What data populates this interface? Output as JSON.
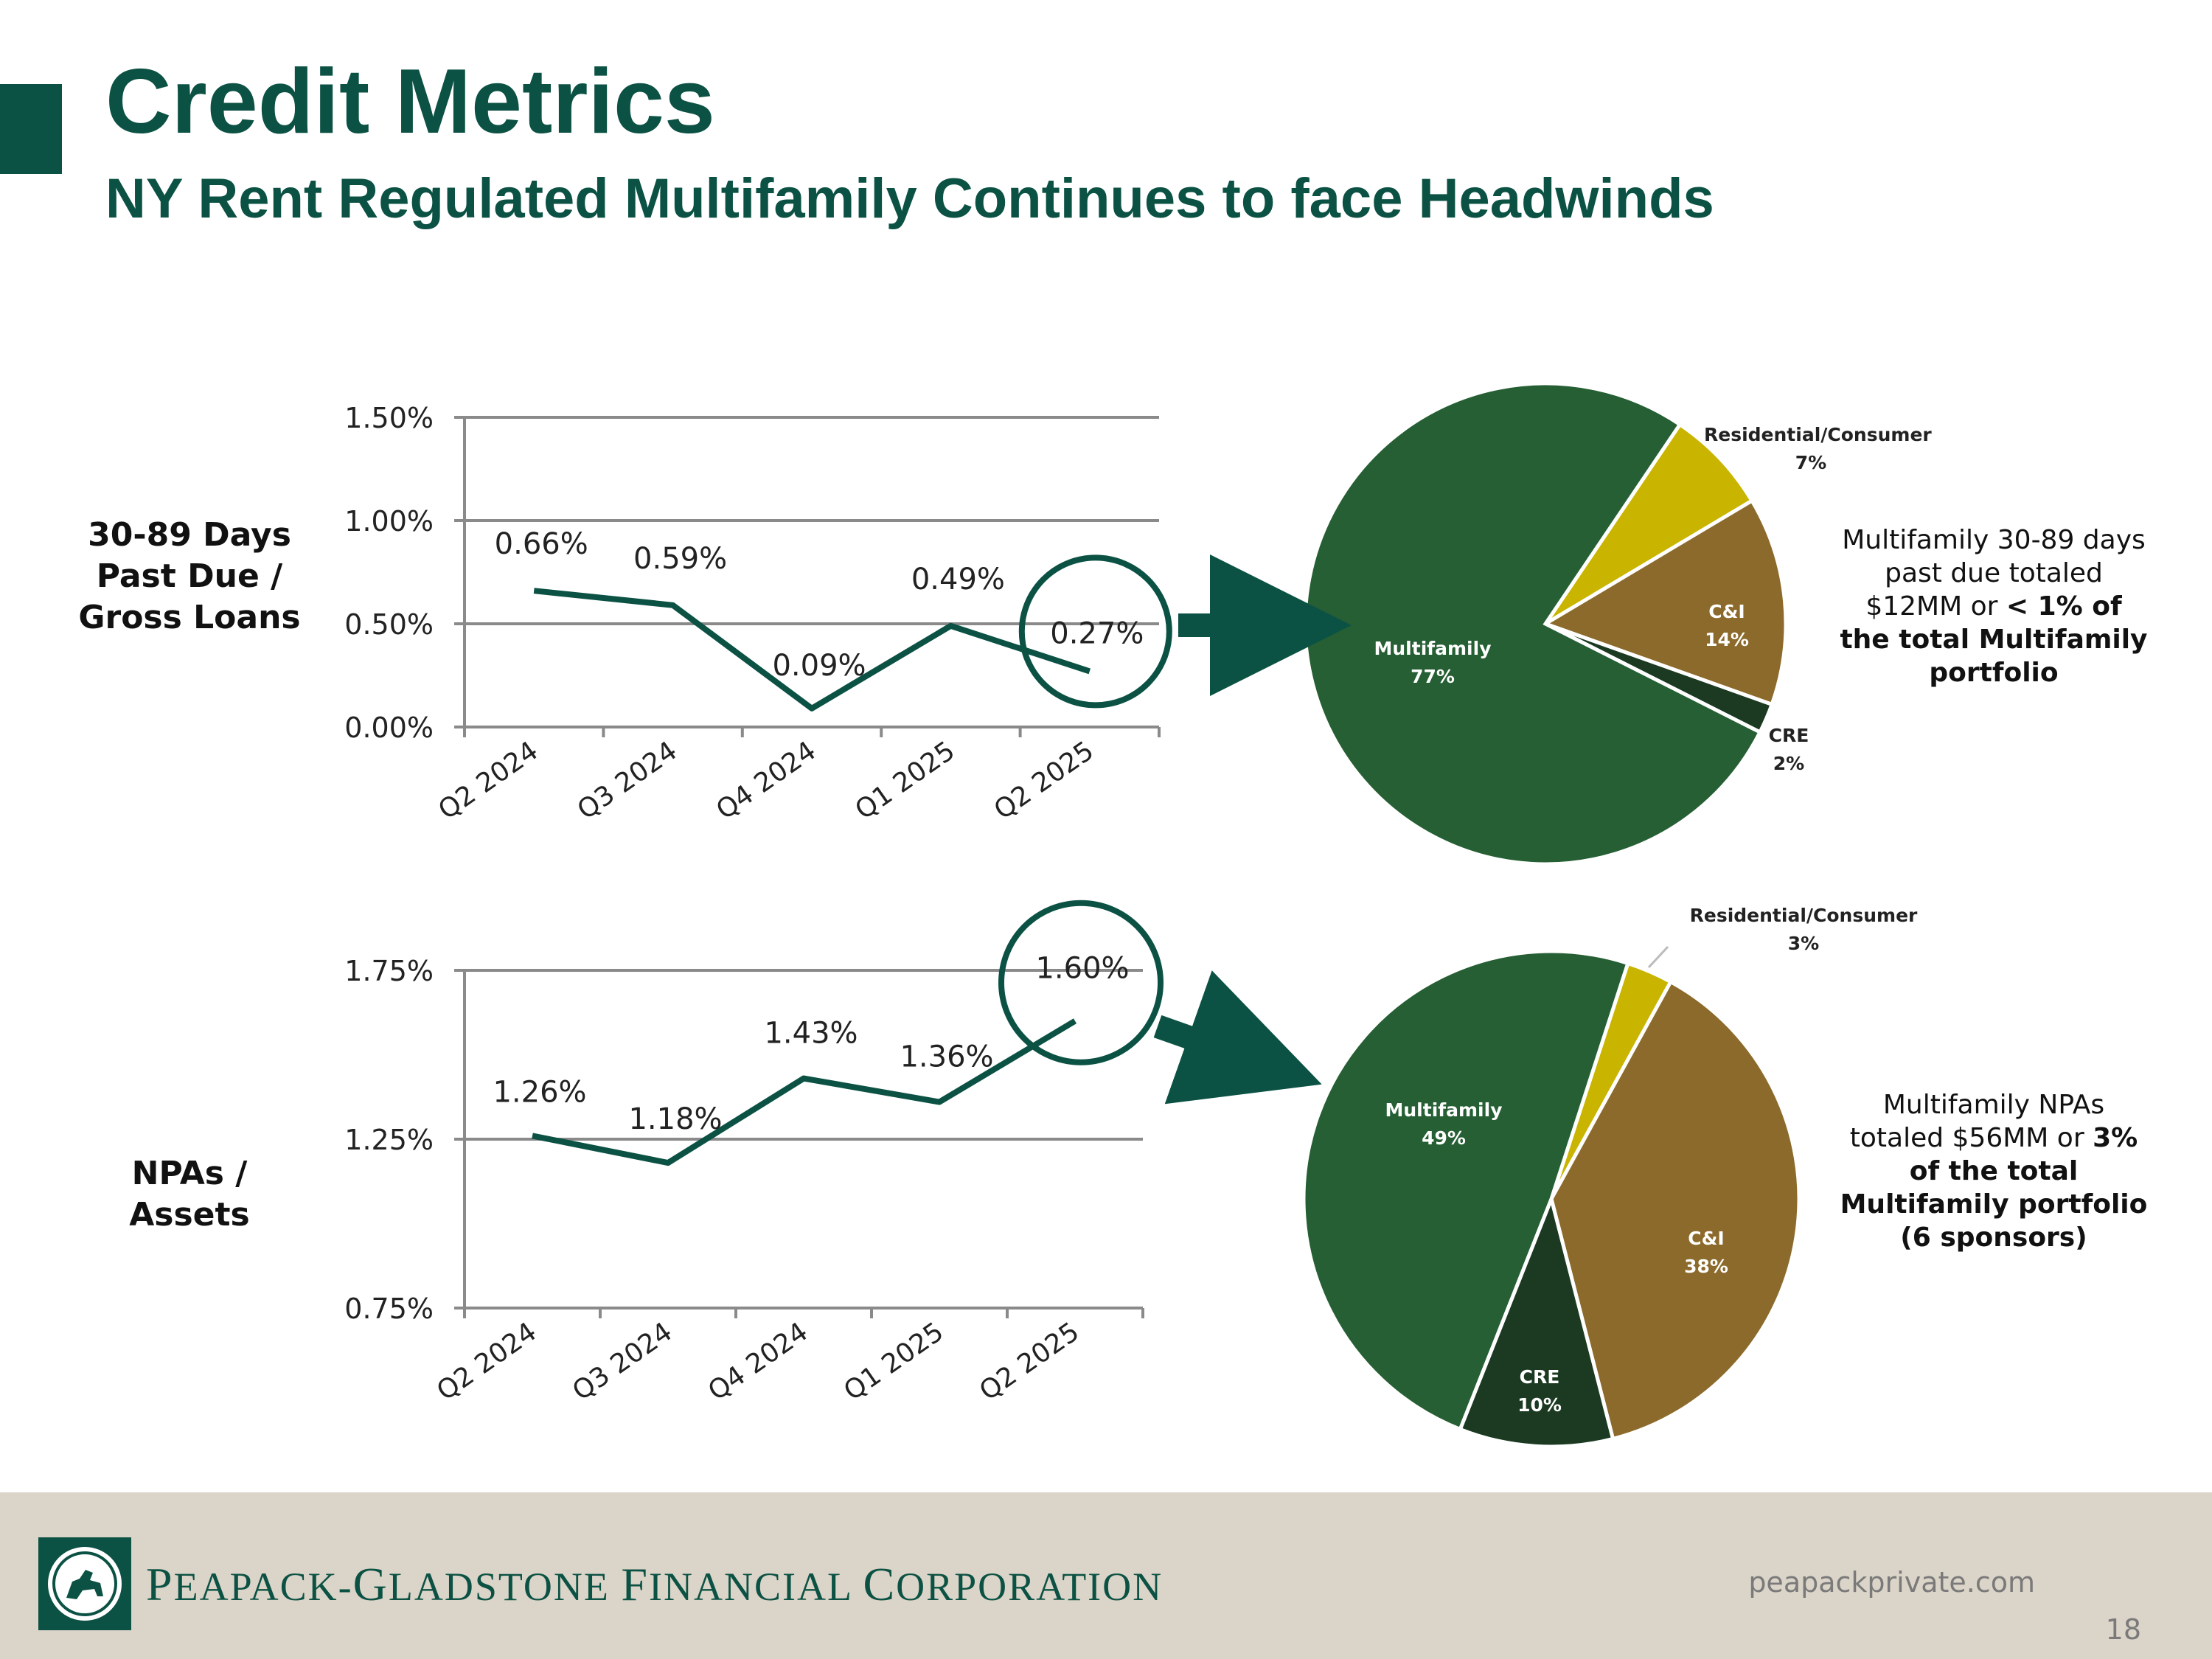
{
  "header": {
    "title": "Credit Metrics",
    "subtitle": "NY Rent Regulated Multifamily Continues to face Headwinds"
  },
  "rows": [
    {
      "label_lines": [
        "30-89 Days",
        "Past Due /",
        "Gross Loans"
      ],
      "callout": {
        "plain": "Multifamily 30-89 days past due totaled $12MM or",
        "bold": "< 1% of the total Multifamily portfolio"
      }
    },
    {
      "label_lines": [
        "NPAs /",
        "Assets"
      ],
      "callout": {
        "plain1": "Multifamily NPAs totaled $56MM or",
        "bold1": "3%",
        "bold2": "of the total Multifamily portfolio (6 sponsors)"
      }
    }
  ],
  "chart_data": [
    {
      "type": "line",
      "categories": [
        "Q2 2024",
        "Q3 2024",
        "Q4 2024",
        "Q1 2025",
        "Q2 2025"
      ],
      "values": [
        0.66,
        0.59,
        0.09,
        0.49,
        0.27
      ],
      "data_labels": [
        "0.66%",
        "0.59%",
        "0.09%",
        "0.49%",
        "0.27%"
      ],
      "yticks": [
        "0.00%",
        "0.50%",
        "1.00%",
        "1.50%"
      ],
      "ylim": [
        0,
        1.5
      ],
      "grid": true,
      "highlight": "Q2 2025",
      "color": "#0c5244"
    },
    {
      "type": "line",
      "categories": [
        "Q2 2024",
        "Q3 2024",
        "Q4 2024",
        "Q1 2025",
        "Q2 2025"
      ],
      "values": [
        1.26,
        1.18,
        1.43,
        1.36,
        1.6
      ],
      "data_labels": [
        "1.26%",
        "1.18%",
        "1.43%",
        "1.36%",
        "1.60%"
      ],
      "yticks": [
        "0.75%",
        "1.25%",
        "1.75%"
      ],
      "ylim": [
        0.75,
        1.75
      ],
      "grid": true,
      "highlight": "Q2 2025",
      "color": "#0c5244"
    },
    {
      "type": "pie",
      "slices": [
        {
          "label": "Residential/Consumer",
          "pct_label": "7%",
          "value": 7,
          "color": "#c9b400"
        },
        {
          "label": "C&I",
          "pct_label": "14%",
          "value": 14,
          "color": "#8b6a2b"
        },
        {
          "label": "CRE",
          "pct_label": "2%",
          "value": 2,
          "color": "#1c3a22"
        },
        {
          "label": "Multifamily",
          "pct_label": "77%",
          "value": 77,
          "color": "#255f33"
        }
      ]
    },
    {
      "type": "pie",
      "slices": [
        {
          "label": "Residential/Consumer",
          "pct_label": "3%",
          "value": 3,
          "color": "#c9b400"
        },
        {
          "label": "C&I",
          "pct_label": "38%",
          "value": 38,
          "color": "#8b6a2b"
        },
        {
          "label": "CRE",
          "pct_label": "10%",
          "value": 10,
          "color": "#1c3a22"
        },
        {
          "label": "Multifamily",
          "pct_label": "49%",
          "value": 49,
          "color": "#255f33"
        }
      ]
    }
  ],
  "footer": {
    "company_parts": [
      {
        "cap": "P",
        "rest": "EAPACK-"
      },
      {
        "cap": "G",
        "rest": "LADSTONE "
      },
      {
        "cap": "F",
        "rest": "INANCIAL "
      },
      {
        "cap": "C",
        "rest": "ORPORATION"
      }
    ],
    "website": "peapackprivate.com",
    "page_number": "18"
  },
  "colors": {
    "brand": "#0c5244",
    "footer_bg": "#dbd4c8"
  }
}
